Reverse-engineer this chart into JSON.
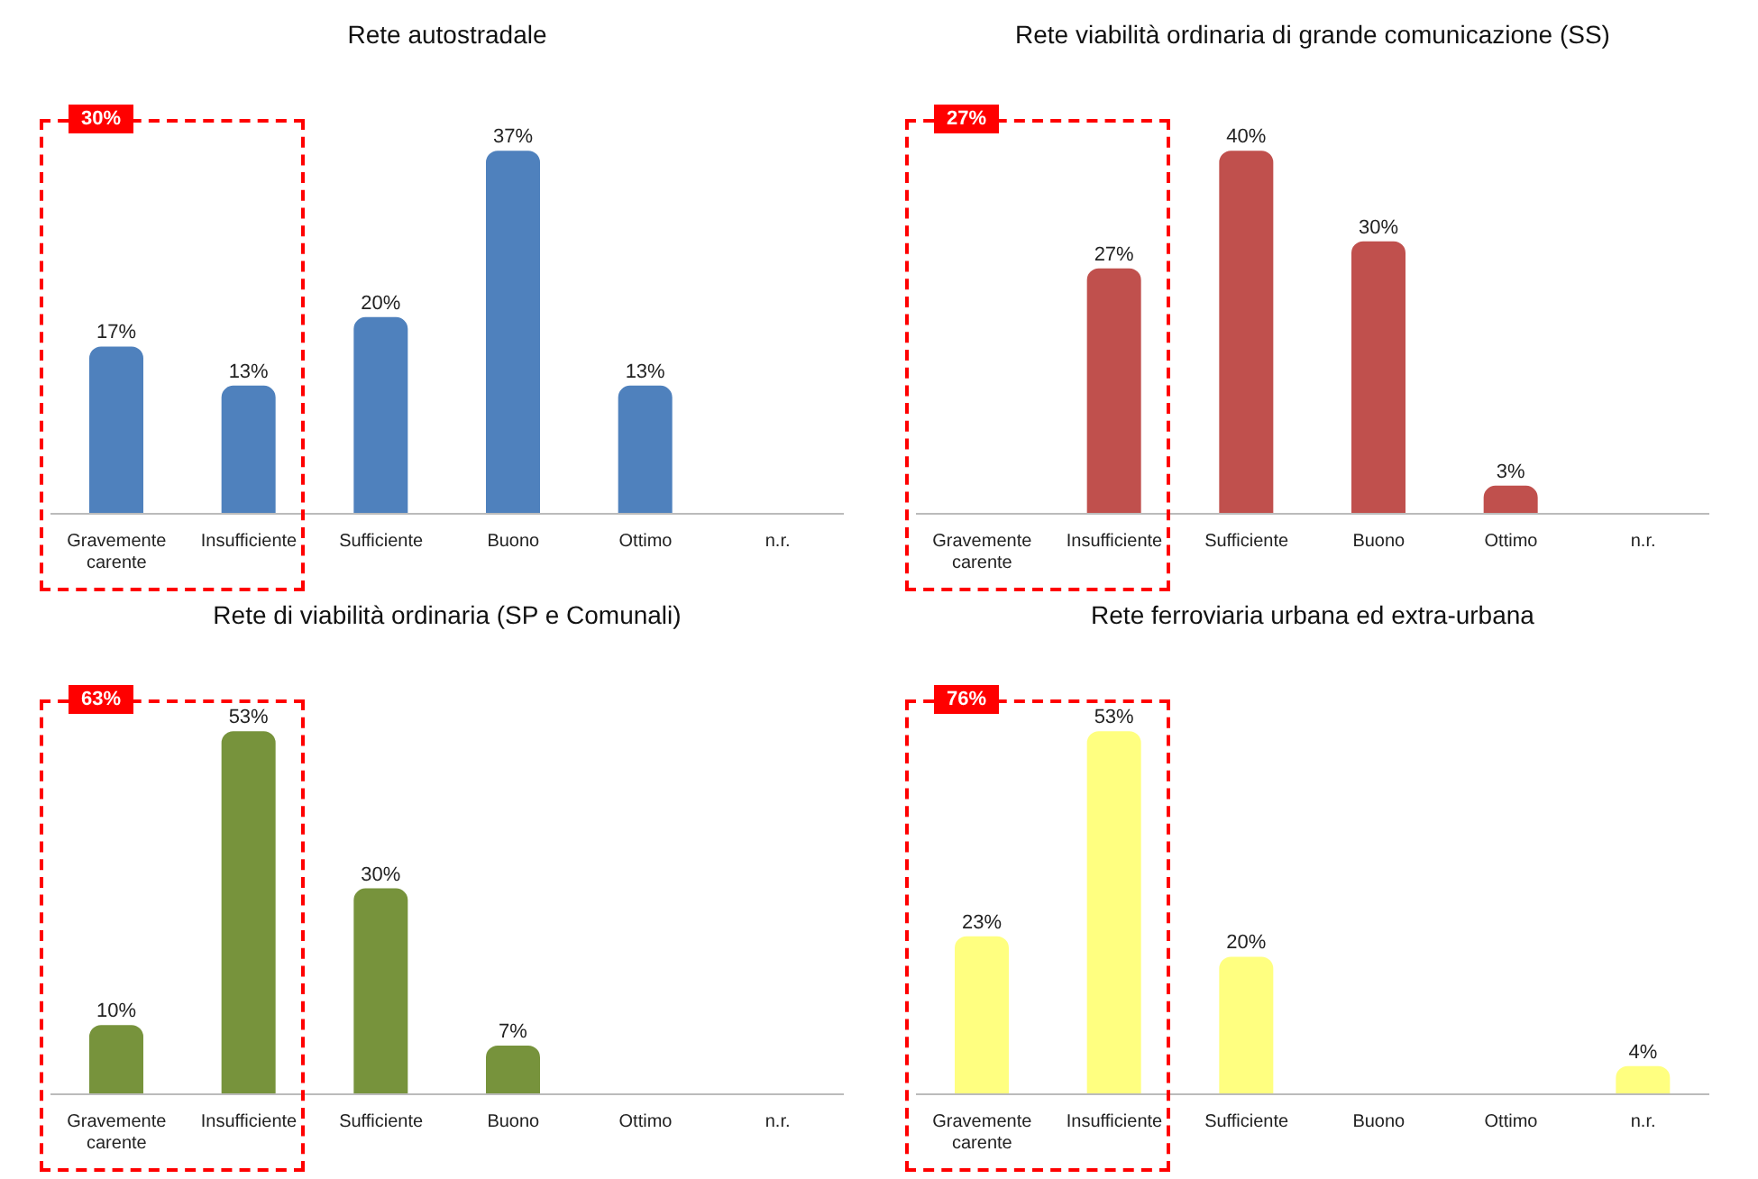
{
  "chart_data": [
    {
      "type": "bar",
      "title": "Rete autostradale",
      "categories": [
        "Gravemente carente",
        "Insufficiente",
        "Sufficiente",
        "Buono",
        "Ottimo",
        "n.r."
      ],
      "values": [
        17,
        13,
        20,
        37,
        13,
        0
      ],
      "value_labels": [
        "17%",
        "13%",
        "20%",
        "37%",
        "13%",
        null
      ],
      "color": "#4f81bd",
      "annotations": [
        "30%"
      ]
    },
    {
      "type": "bar",
      "title": "Rete viabilità ordinaria di grande comunicazione (SS)",
      "categories": [
        "Gravemente carente",
        "Insufficiente",
        "Sufficiente",
        "Buono",
        "Ottimo",
        "n.r."
      ],
      "values": [
        0,
        27,
        40,
        30,
        3,
        0
      ],
      "value_labels": [
        null,
        "27%",
        "40%",
        "30%",
        "3%",
        null
      ],
      "color": "#c0504d",
      "annotations": [
        "27%"
      ]
    },
    {
      "type": "bar",
      "title": "Rete di viabilità ordinaria (SP e Comunali)",
      "categories": [
        "Gravemente carente",
        "Insufficiente",
        "Sufficiente",
        "Buono",
        "Ottimo",
        "n.r."
      ],
      "values": [
        10,
        53,
        30,
        7,
        0,
        0
      ],
      "value_labels": [
        "10%",
        "53%",
        "30%",
        "7%",
        null,
        null
      ],
      "color": "#77933c",
      "annotations": [
        "63%"
      ]
    },
    {
      "type": "bar",
      "title": "Rete ferroviaria urbana ed extra-urbana",
      "categories": [
        "Gravemente carente",
        "Insufficiente",
        "Sufficiente",
        "Buono",
        "Ottimo",
        "n.r."
      ],
      "values": [
        23,
        53,
        20,
        0,
        0,
        4
      ],
      "value_labels": [
        "23%",
        "53%",
        "20%",
        null,
        null,
        "4%"
      ],
      "color": "#ffff80",
      "annotations": [
        "76%"
      ]
    }
  ]
}
